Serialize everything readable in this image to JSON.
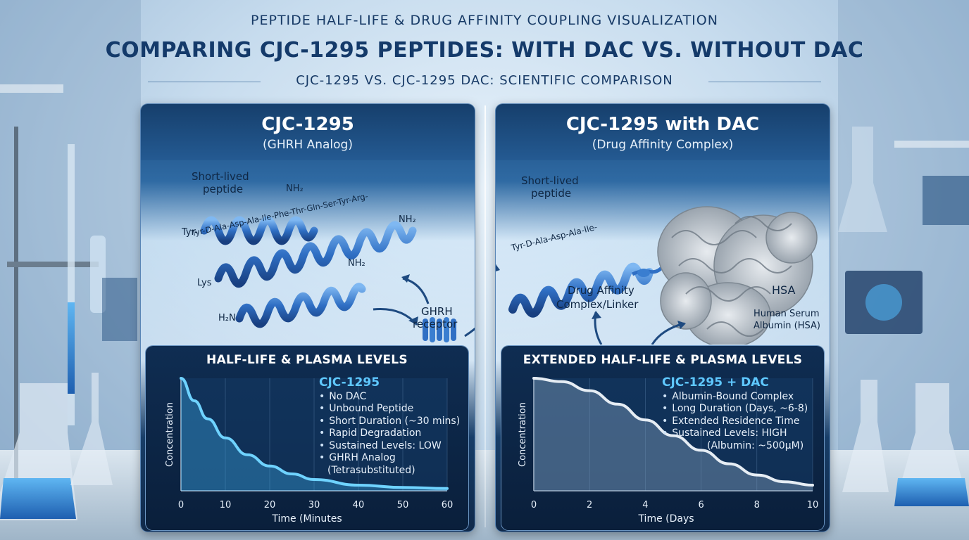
{
  "header": {
    "top": "PEPTIDE HALF-LIFE & DRUG AFFINITY COUPLING VISUALIZATION",
    "main": "COMPARING CJC-1295 PEPTIDES: WITH DAC VS. WITHOUT DAC",
    "sub": "CJC-1295 VS. CJC-1295 DAC: SCIENTIFIC COMPARISON"
  },
  "left_panel": {
    "title": "CJC-1295",
    "subtitle": "(GHRH Analog)",
    "labels": {
      "short_lived": "Short-lived",
      "peptide": "peptide",
      "nh2_a": "NH₂",
      "tyr": "Tyr-",
      "sequence": "Tyr-D-Ala-Asp-Ala-Ile-Phe-Thr-Gln-Ser-Tyr-Arg-",
      "nh2_b": "NH₂",
      "lys": "Lys",
      "nh2_c": "NH₂",
      "h2n": "H₂N",
      "receptor_1": "GHRH",
      "receptor_2": "receptor"
    },
    "chart_title": "HALF-LIFE & PLASMA LEVELS",
    "info_heading": "CJC-1295",
    "info_items": [
      "No DAC",
      "Unbound Peptide",
      "Short Duration (~30 mins)",
      "Rapid Degradation",
      "Sustained Levels: LOW",
      "GHRH Analog"
    ],
    "info_extra": "(Tetrasubstituted)"
  },
  "right_panel": {
    "title": "CJC-1295 with DAC",
    "subtitle": "(Drug Affinity Complex)",
    "labels": {
      "short_lived": "Short-lived",
      "peptide": "peptide",
      "sequence": "Tyr-D-Ala-Asp-Ala-Ile-",
      "linker_1": "Drug Affinity",
      "linker_2": "Complex/Linker",
      "hsa": "HSA",
      "hsa_full_1": "Human Serum",
      "hsa_full_2": "Albumin (HSA)"
    },
    "chart_title": "EXTENDED HALF-LIFE & PLASMA LEVELS",
    "info_heading": "CJC-1295 + DAC",
    "info_items": [
      "Albumin-Bound Complex",
      "Long Duration (Days, ~6-8)",
      "Extended Residence Time",
      "Sustained Levels: HIGH"
    ],
    "info_extra": "(Albumin: ~500µM)"
  },
  "colors": {
    "accent": "#5fc8ff",
    "panel": "#1b4a7e",
    "helix": "#2f6fc4",
    "title": "#143a6a"
  },
  "chart_data": [
    {
      "type": "line",
      "title": "HALF-LIFE & PLASMA LEVELS",
      "xlabel": "Time (Minutes",
      "ylabel": "Concentration",
      "xlim": [
        0,
        60
      ],
      "ylim": [
        0,
        1
      ],
      "xticks": [
        "0",
        "10",
        "20",
        "30",
        "40",
        "50",
        "60"
      ],
      "series": [
        {
          "x": [
            0,
            3,
            6,
            10,
            15,
            20,
            25,
            30,
            40,
            50,
            60
          ],
          "y": [
            1.0,
            0.8,
            0.64,
            0.47,
            0.32,
            0.22,
            0.15,
            0.1,
            0.05,
            0.03,
            0.02
          ]
        }
      ]
    },
    {
      "type": "area",
      "title": "EXTENDED HALF-LIFE & PLASMA LEVELS",
      "xlabel": "Time (Days",
      "ylabel": "Concentration",
      "xlim": [
        0,
        10
      ],
      "ylim": [
        0,
        1
      ],
      "xticks": [
        "0",
        "2",
        "4",
        "6",
        "8",
        "10"
      ],
      "series": [
        {
          "x": [
            0,
            1,
            2,
            3,
            4,
            5,
            6,
            7,
            8,
            9,
            10
          ],
          "y": [
            1.0,
            0.97,
            0.89,
            0.77,
            0.63,
            0.49,
            0.36,
            0.24,
            0.14,
            0.08,
            0.05
          ]
        }
      ]
    }
  ]
}
